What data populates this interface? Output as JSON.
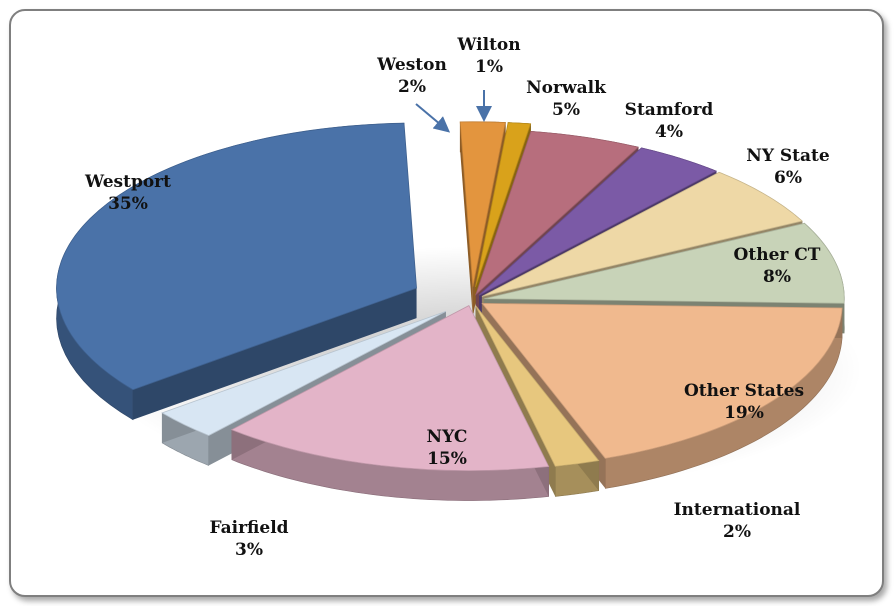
{
  "chart_data": {
    "type": "pie",
    "title": "",
    "slices": [
      {
        "name": "Weston",
        "value": 2,
        "label": "2%",
        "color": "#E3953E"
      },
      {
        "name": "Wilton",
        "value": 1,
        "label": "1%",
        "color": "#D9A21B"
      },
      {
        "name": "Norwalk",
        "value": 5,
        "label": "5%",
        "color": "#B76E7D"
      },
      {
        "name": "Stamford",
        "value": 4,
        "label": "4%",
        "color": "#7B5AA6"
      },
      {
        "name": "NY State",
        "value": 6,
        "label": "6%",
        "color": "#EED8A6"
      },
      {
        "name": "Other CT",
        "value": 8,
        "label": "8%",
        "color": "#C8D3B8"
      },
      {
        "name": "Other States",
        "value": 19,
        "label": "19%",
        "color": "#F0B98E"
      },
      {
        "name": "International",
        "value": 2,
        "label": "2%",
        "color": "#E7C77E"
      },
      {
        "name": "NYC",
        "value": 15,
        "label": "15%",
        "color": "#E3B4C8"
      },
      {
        "name": "Fairfield",
        "value": 3,
        "label": "3%",
        "color": "#D8E6F3"
      },
      {
        "name": "Westport",
        "value": 35,
        "label": "35%",
        "color": "#4A72A8"
      }
    ],
    "legend": "none",
    "style": "3d-exploded-pie"
  }
}
